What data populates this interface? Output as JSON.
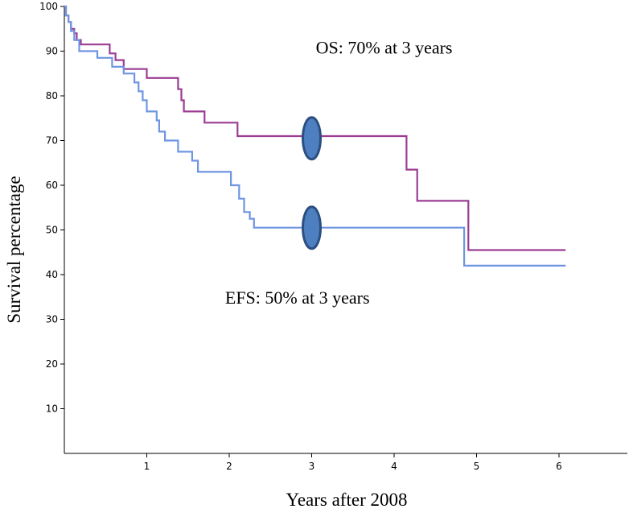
{
  "chart_data": {
    "type": "line",
    "title": "",
    "xlabel": "Years after 2008",
    "ylabel": "Survival percentage",
    "xlim": [
      0,
      6.9
    ],
    "ylim": [
      0,
      100
    ],
    "x_ticks": [
      1,
      2,
      3,
      4,
      5,
      6
    ],
    "y_ticks": [
      10,
      20,
      30,
      40,
      50,
      60,
      70,
      80,
      90,
      100
    ],
    "grid": false,
    "step": true,
    "series": [
      {
        "key": "os",
        "color": "#9b3d93",
        "x": [
          0,
          0.02,
          0.05,
          0.08,
          0.12,
          0.15,
          0.2,
          0.55,
          0.62,
          0.72,
          0.78,
          1.0,
          1.38,
          1.42,
          1.45,
          1.7,
          2.1,
          4.15,
          4.28,
          4.9,
          6.08
        ],
        "y": [
          100,
          98,
          96.5,
          95,
          94,
          92.5,
          91.5,
          89.5,
          88,
          86,
          86,
          84,
          81.5,
          79,
          76.5,
          74,
          71,
          63.5,
          56.5,
          45.5,
          45.5
        ]
      },
      {
        "key": "efs",
        "color": "#6f95e2",
        "x": [
          0,
          0.02,
          0.05,
          0.08,
          0.12,
          0.18,
          0.4,
          0.58,
          0.72,
          0.85,
          0.9,
          0.95,
          1.0,
          1.12,
          1.15,
          1.22,
          1.38,
          1.55,
          1.62,
          1.68,
          2.02,
          2.12,
          2.18,
          2.25,
          2.3,
          4.85,
          6.08
        ],
        "y": [
          100,
          98,
          96.5,
          94.5,
          92.5,
          90,
          88.5,
          86.5,
          85,
          83,
          81,
          79,
          76.5,
          74.5,
          72,
          70,
          67.5,
          65.5,
          63,
          63,
          60,
          57,
          54,
          52.5,
          50.5,
          42,
          42
        ]
      }
    ],
    "markers": [
      {
        "x": 3,
        "y": 70.5,
        "color": "#4e7fc0",
        "stroke": "#2b4f80"
      },
      {
        "x": 3,
        "y": 50.5,
        "color": "#4e7fc0",
        "stroke": "#2b4f80"
      }
    ],
    "annotations": [
      {
        "key": "os",
        "text": "OS: 70% at 3 years",
        "x": 3.05,
        "y": 89.5
      },
      {
        "key": "efs",
        "text": "EFS: 50% at 3 years",
        "x": 1.95,
        "y": 33.5
      }
    ]
  }
}
